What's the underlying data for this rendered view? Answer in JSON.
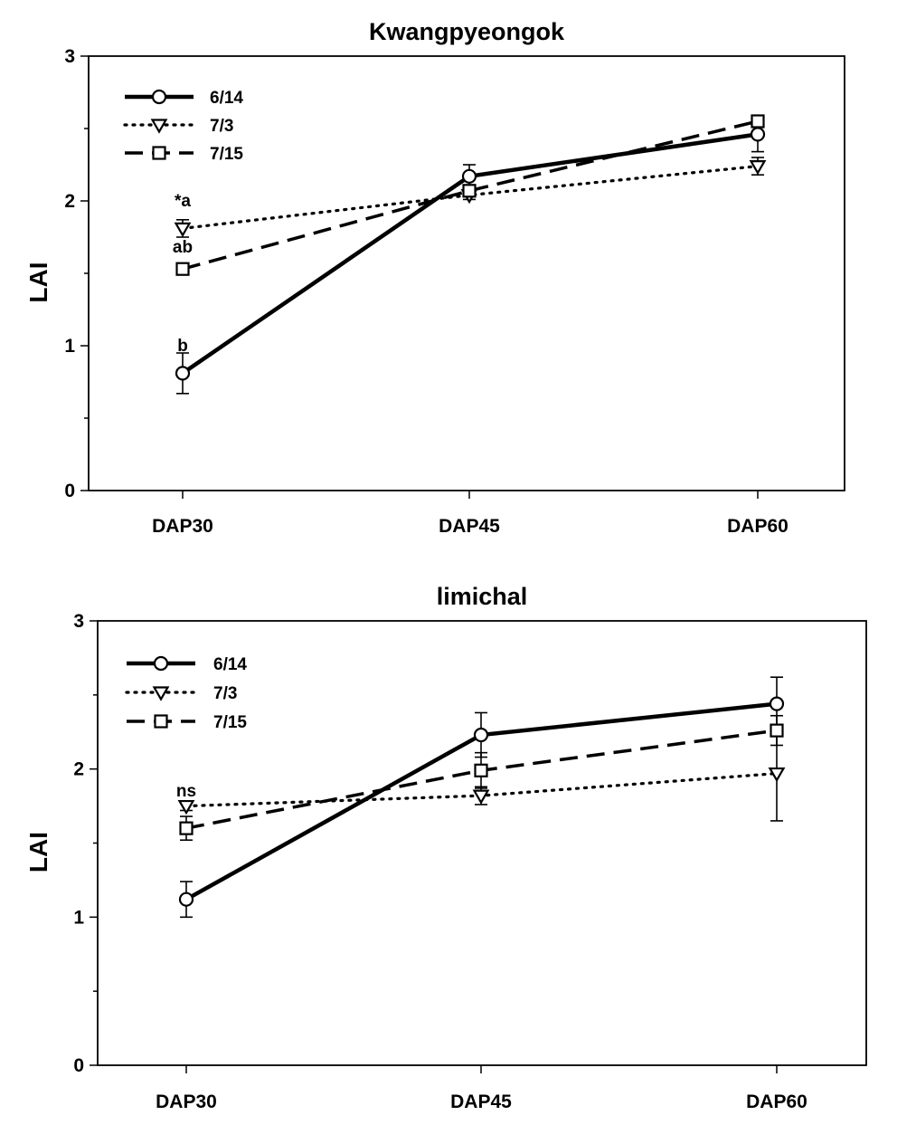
{
  "chart_data": [
    {
      "type": "line",
      "title": "Kwangpyeongok",
      "xlabel": "",
      "ylabel": "LAI",
      "categories": [
        "DAP30",
        "DAP45",
        "DAP60"
      ],
      "ylim": [
        0,
        3
      ],
      "yticks": [
        "0",
        "1",
        "2",
        "3"
      ],
      "legend_position": "top-left",
      "grid": false,
      "series": [
        {
          "name": "6/14",
          "line": "solid",
          "marker": "circle",
          "values": [
            0.81,
            2.17,
            2.46
          ],
          "errors": [
            0.14,
            0.08,
            0.12
          ]
        },
        {
          "name": "7/3",
          "line": "dotted",
          "marker": "triangle-down",
          "values": [
            1.81,
            2.04,
            2.24
          ],
          "errors": [
            0.06,
            0.03,
            0.06
          ]
        },
        {
          "name": "7/15",
          "line": "dashed",
          "marker": "square",
          "values": [
            1.53,
            2.07,
            2.55
          ],
          "errors": [
            0.02,
            0.04,
            0.02
          ]
        }
      ],
      "annotations": [
        {
          "text": "*a",
          "x": "DAP30",
          "y": 2.0
        },
        {
          "text": "ab",
          "x": "DAP30",
          "y": 1.68
        },
        {
          "text": "b",
          "x": "DAP30",
          "y": 1.0
        }
      ]
    },
    {
      "type": "line",
      "title": "limichal",
      "xlabel": "",
      "ylabel": "LAI",
      "categories": [
        "DAP30",
        "DAP45",
        "DAP60"
      ],
      "ylim": [
        0,
        3
      ],
      "yticks": [
        "0",
        "1",
        "2",
        "3"
      ],
      "legend_position": "top-left",
      "grid": false,
      "series": [
        {
          "name": "6/14",
          "line": "solid",
          "marker": "circle",
          "values": [
            1.12,
            2.23,
            2.44
          ],
          "errors": [
            0.12,
            0.15,
            0.18
          ]
        },
        {
          "name": "7/3",
          "line": "dotted",
          "marker": "triangle-down",
          "values": [
            1.75,
            1.82,
            1.97
          ],
          "errors": [
            0.03,
            0.06,
            0.32
          ]
        },
        {
          "name": "7/15",
          "line": "dashed",
          "marker": "square",
          "values": [
            1.6,
            1.99,
            2.26
          ],
          "errors": [
            0.08,
            0.12,
            0.1
          ]
        }
      ],
      "annotations": [
        {
          "text": "ns",
          "x": "DAP30",
          "y": 1.85
        }
      ]
    }
  ]
}
